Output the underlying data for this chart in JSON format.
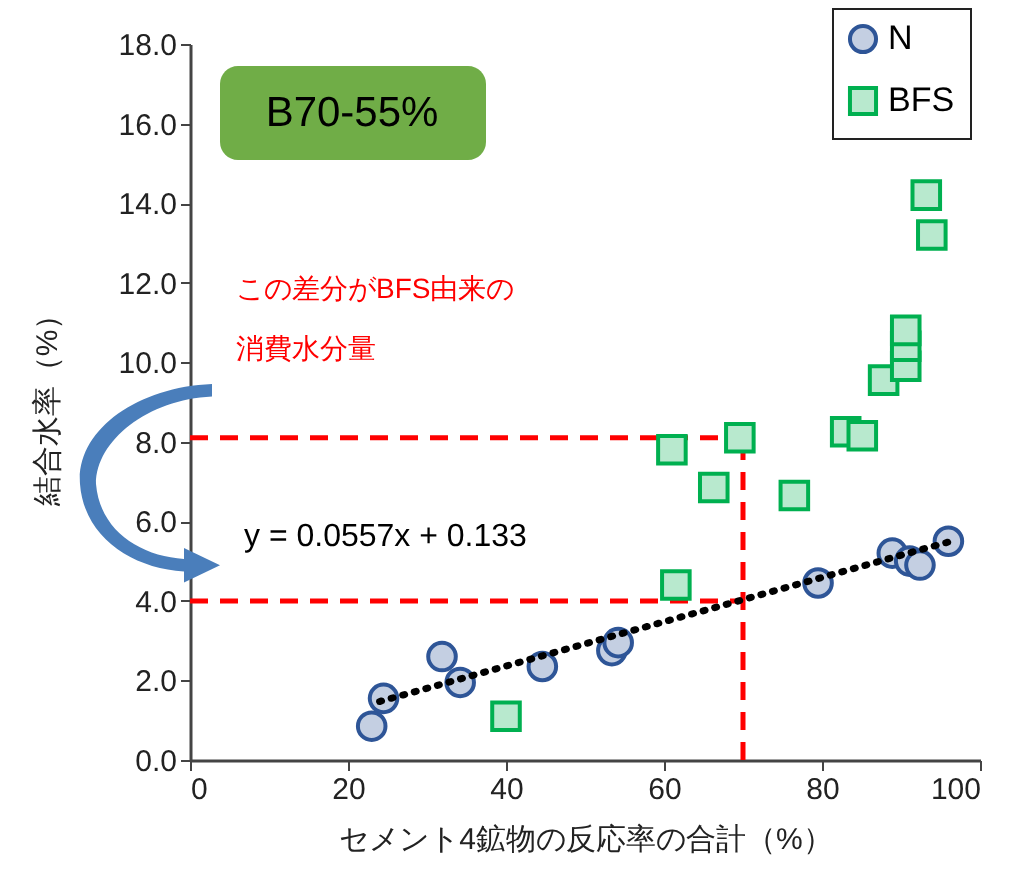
{
  "chart_data": {
    "type": "scatter",
    "xlabel": "セメント4鉱物の反応率の合計（%）",
    "ylabel": "結合水率（%）",
    "xlim": [
      0,
      100
    ],
    "xticks": [
      0,
      20,
      40,
      60,
      80,
      100
    ],
    "ylim": [
      0,
      18
    ],
    "yticks": [
      {
        "value": 0,
        "label": "0.0"
      },
      {
        "value": 2,
        "label": "2.0"
      },
      {
        "value": 4,
        "label": "4.0"
      },
      {
        "value": 6,
        "label": "6.0"
      },
      {
        "value": 8,
        "label": "8.0"
      },
      {
        "value": 10,
        "label": "10.0"
      },
      {
        "value": 12,
        "label": "12.0"
      },
      {
        "value": 14,
        "label": "14.0"
      },
      {
        "value": 16,
        "label": "16.0"
      },
      {
        "value": 18,
        "label": "18.0"
      }
    ],
    "legend": "top right",
    "grid": false,
    "series": [
      {
        "name": "N",
        "color": "#2e5597",
        "marker": "circle",
        "x": [
          23.0,
          24.5,
          31.9,
          34.2,
          44.6,
          53.4,
          54.2,
          79.5,
          88.9,
          91.1,
          92.4,
          96.0
        ],
        "values": [
          0.85,
          1.55,
          2.6,
          1.95,
          2.35,
          2.75,
          2.95,
          4.45,
          5.2,
          5.0,
          4.9,
          5.5
        ]
      },
      {
        "name": "BFS",
        "color": "#00b050",
        "marker": "square",
        "x": [
          40.0,
          61.0,
          61.5,
          66.3,
          69.6,
          76.5,
          83.0,
          85.1,
          87.8,
          90.6,
          90.6,
          90.6,
          93.2,
          93.9
        ],
        "values": [
          1.1,
          7.8,
          4.4,
          6.85,
          8.1,
          6.65,
          8.25,
          8.15,
          9.55,
          9.9,
          10.4,
          10.8,
          14.2,
          13.2
        ]
      },
      {
        "type": "line",
        "color": "#000000",
        "line_style": "dotted",
        "x": [
          24,
          96
        ],
        "values": [
          1.47,
          5.48
        ]
      }
    ],
    "ref_lines": [
      {
        "axis": "y",
        "value": 8.1,
        "color": "#ff0000",
        "line_style": "dashed"
      },
      {
        "axis": "y",
        "value": 4.0,
        "color": "#ff0000",
        "line_style": "dashed"
      },
      {
        "axis": "x",
        "value": 70,
        "color": "#ff0000",
        "line_style": "dashed"
      }
    ],
    "annotations": [
      "B70-55%",
      "この差分がBFS由来の",
      "消費水分量",
      "y = 0.0557x + 0.133"
    ]
  }
}
